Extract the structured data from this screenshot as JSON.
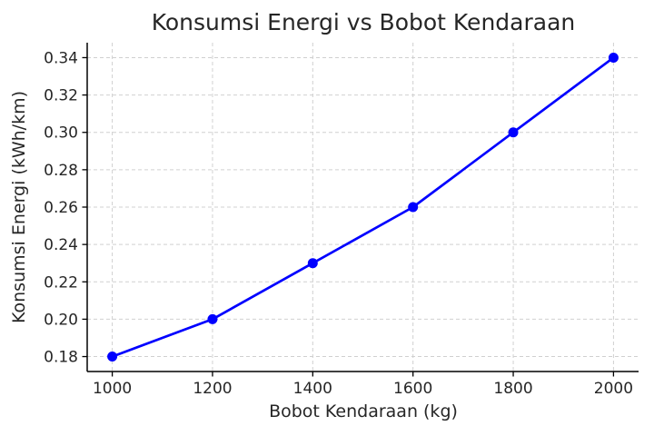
{
  "chart_data": {
    "type": "line",
    "title": "Konsumsi Energi vs Bobot Kendaraan",
    "xlabel": "Bobot Kendaraan (kg)",
    "ylabel": "Konsumsi Energi (kWh/km)",
    "x": [
      1000,
      1200,
      1400,
      1600,
      1800,
      2000
    ],
    "y": [
      0.18,
      0.2,
      0.23,
      0.26,
      0.3,
      0.34
    ],
    "xlim": [
      950,
      2050
    ],
    "ylim": [
      0.172,
      0.348
    ],
    "xticks": [
      1000,
      1200,
      1400,
      1600,
      1800,
      2000
    ],
    "xtick_labels": [
      "1000",
      "1200",
      "1400",
      "1600",
      "1800",
      "2000"
    ],
    "yticks": [
      0.18,
      0.2,
      0.22,
      0.24,
      0.26,
      0.28,
      0.3,
      0.32,
      0.34
    ],
    "ytick_labels": [
      "0.18",
      "0.20",
      "0.22",
      "0.24",
      "0.26",
      "0.28",
      "0.30",
      "0.32",
      "0.34"
    ],
    "grid": true,
    "grid_style": "dashed",
    "legend": null,
    "marker": "circle",
    "colors": {
      "line": "#0000ff",
      "marker": "#0000ff",
      "grid": "#d0d0d0",
      "spine": "#000000",
      "text": "#262626",
      "background": "#ffffff"
    }
  }
}
